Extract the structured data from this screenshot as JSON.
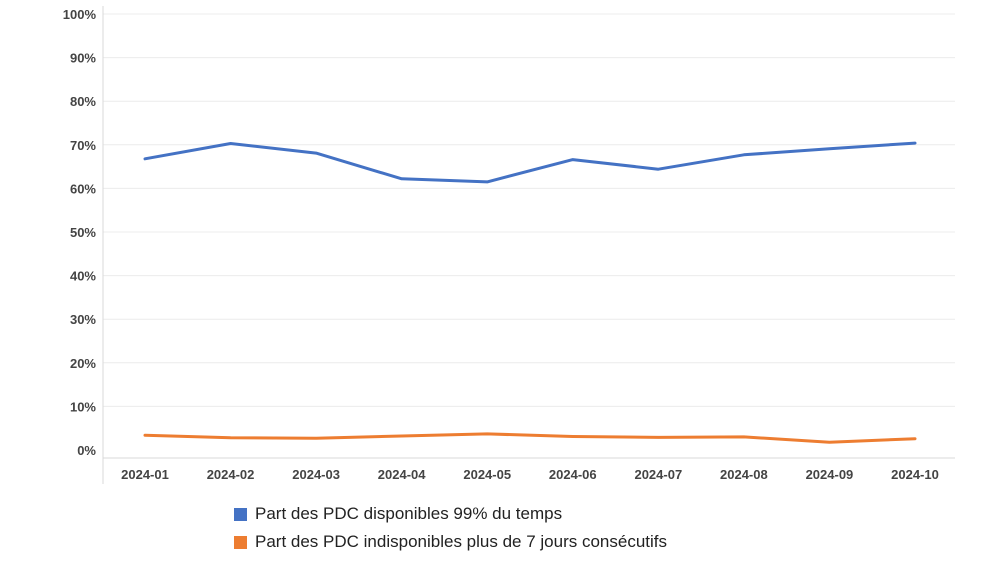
{
  "chart_data": {
    "type": "line",
    "categories": [
      "2024-01",
      "2024-02",
      "2024-03",
      "2024-04",
      "2024-05",
      "2024-06",
      "2024-07",
      "2024-08",
      "2024-09",
      "2024-10"
    ],
    "series": [
      {
        "name": "Part des PDC disponibles 99% du temps",
        "color": "#4472c4",
        "values": [
          66.8,
          70.3,
          68.1,
          62.2,
          61.5,
          66.6,
          64.4,
          67.7,
          69.1,
          70.4
        ]
      },
      {
        "name": "Part des PDC indisponibles plus de 7 jours consécutifs",
        "color": "#ed7d31",
        "values": [
          3.4,
          2.8,
          2.7,
          3.2,
          3.7,
          3.1,
          2.9,
          3.0,
          1.8,
          2.6
        ]
      }
    ],
    "y_ticks": [
      "0%",
      "10%",
      "20%",
      "30%",
      "40%",
      "50%",
      "60%",
      "70%",
      "80%",
      "90%",
      "100%"
    ],
    "ylim": [
      0,
      100
    ],
    "title": "",
    "xlabel": "",
    "ylabel": "",
    "grid": true,
    "legend_position": "bottom"
  }
}
